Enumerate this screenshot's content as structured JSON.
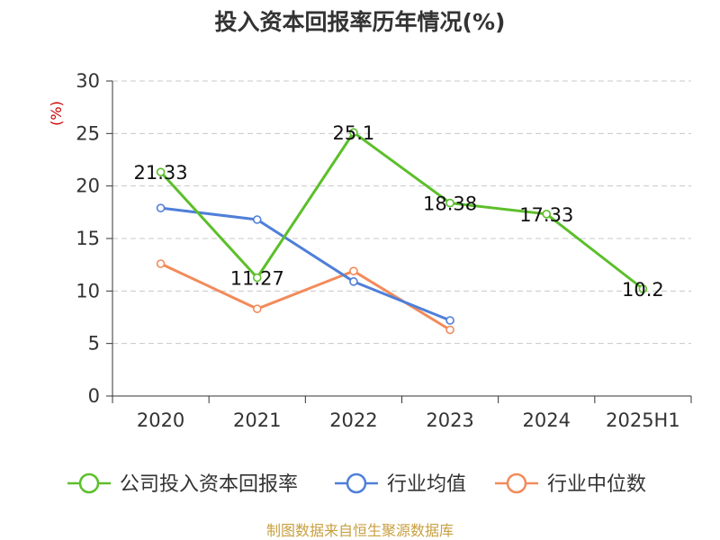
{
  "chart_data": {
    "type": "line",
    "title": "投入资本回报率历年情况(%)",
    "ylabel": "(%)",
    "xlabel": "",
    "categories": [
      "2020",
      "2021",
      "2022",
      "2023",
      "2024",
      "2025H1"
    ],
    "ylim": [
      0,
      30
    ],
    "yticks": [
      0,
      5,
      10,
      15,
      20,
      25,
      30
    ],
    "grid": true,
    "legend_position": "bottom",
    "series": [
      {
        "name": "公司投入资本回报率",
        "color": "#5cbf2a",
        "values": [
          21.33,
          11.27,
          25.1,
          18.38,
          17.33,
          10.2
        ],
        "labels": [
          "21.33",
          "11.27",
          "25.1",
          "18.38",
          "17.33",
          "10.2"
        ]
      },
      {
        "name": "行业均值",
        "color": "#4f7fd9",
        "values": [
          17.9,
          16.8,
          10.9,
          7.2,
          null,
          null
        ]
      },
      {
        "name": "行业中位数",
        "color": "#f28b5a",
        "values": [
          12.6,
          8.3,
          11.9,
          6.3,
          null,
          null
        ]
      }
    ],
    "source": "制图数据来自恒生聚源数据库"
  }
}
